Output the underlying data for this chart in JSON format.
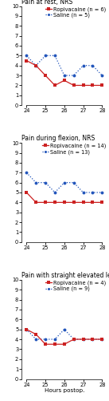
{
  "panel1": {
    "title": "Pain at rest, NRS",
    "ropivacaine_label": "Ropivacaine (n = 6)",
    "saline_label": "Saline (n = 5)",
    "x": [
      24,
      24.5,
      25,
      25.5,
      26,
      26.5,
      27,
      27.5,
      28
    ],
    "ropivacaine_y": [
      4.5,
      4.0,
      3.0,
      2.0,
      2.5,
      2.0,
      2.0,
      2.0,
      2.0
    ],
    "saline_y": [
      5.0,
      4.0,
      5.0,
      5.0,
      3.0,
      3.0,
      4.0,
      4.0,
      3.0
    ]
  },
  "panel2": {
    "title": "Pain during flexion, NRS",
    "ropivacaine_label": "Ropivacaine (n = 14)",
    "saline_label": "Saline (n = 13)",
    "x": [
      24,
      24.5,
      25,
      25.5,
      26,
      26.5,
      27,
      27.5,
      28
    ],
    "ropivacaine_y": [
      5.0,
      4.0,
      4.0,
      4.0,
      4.0,
      4.0,
      4.0,
      4.0,
      4.0
    ],
    "saline_y": [
      7.0,
      6.0,
      6.0,
      5.0,
      6.0,
      6.0,
      5.0,
      5.0,
      5.0
    ]
  },
  "panel3": {
    "title": "Pain with straight elevated leg, NRS",
    "ropivacaine_label": "Ropivacaine (n = 4)",
    "saline_label": "Saline (n = 9)",
    "x": [
      24,
      24.5,
      25,
      25.5,
      26,
      26.5,
      27,
      27.5,
      28
    ],
    "ropivacaine_y": [
      5.0,
      4.5,
      3.5,
      3.5,
      3.5,
      4.0,
      4.0,
      4.0,
      4.0
    ],
    "saline_y": [
      5.0,
      4.0,
      4.0,
      4.0,
      5.0,
      4.0,
      4.0,
      4.0,
      4.0
    ]
  },
  "color_ropivacaine": "#cc2222",
  "color_saline": "#2255bb",
  "ylim": [
    0,
    10
  ],
  "yticks": [
    0,
    1,
    2,
    3,
    4,
    5,
    6,
    7,
    8,
    9,
    10
  ],
  "xticks": [
    24,
    25,
    26,
    27,
    28
  ],
  "xlabel": "Hours postop.",
  "linewidth": 0.9,
  "markersize": 2.8,
  "fontsize_title": 5.5,
  "fontsize_legend": 4.8,
  "fontsize_ticks": 4.8,
  "fontsize_xlabel": 5.2
}
